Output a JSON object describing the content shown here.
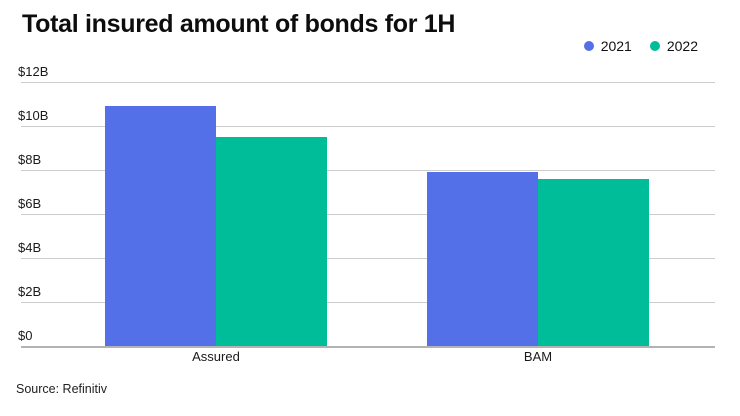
{
  "chart_data": {
    "type": "bar",
    "title": "Total insured amount of bonds for 1H",
    "categories": [
      "Assured",
      "BAM"
    ],
    "series": [
      {
        "name": "2021",
        "color": "#5470E8",
        "values": [
          10.9,
          7.9
        ]
      },
      {
        "name": "2022",
        "color": "#00BD9A",
        "values": [
          9.5,
          7.6
        ]
      }
    ],
    "unit": "USD billions",
    "ylim": [
      0,
      12
    ],
    "y_ticks": [
      {
        "label": "$12B",
        "value": 12
      },
      {
        "label": "$10B",
        "value": 10
      },
      {
        "label": "$8B",
        "value": 8
      },
      {
        "label": "$6B",
        "value": 6
      },
      {
        "label": "$4B",
        "value": 4
      },
      {
        "label": "$2B",
        "value": 2
      },
      {
        "label": "$0",
        "value": 0
      }
    ],
    "grid": true,
    "legend_position": "top-right",
    "source": "Source: Refinitiv",
    "colors": {
      "grid_line": "#cdcdcd",
      "baseline": "#b3b3b3",
      "text": "#1a1a1a",
      "title": "#0d0d0d"
    }
  }
}
